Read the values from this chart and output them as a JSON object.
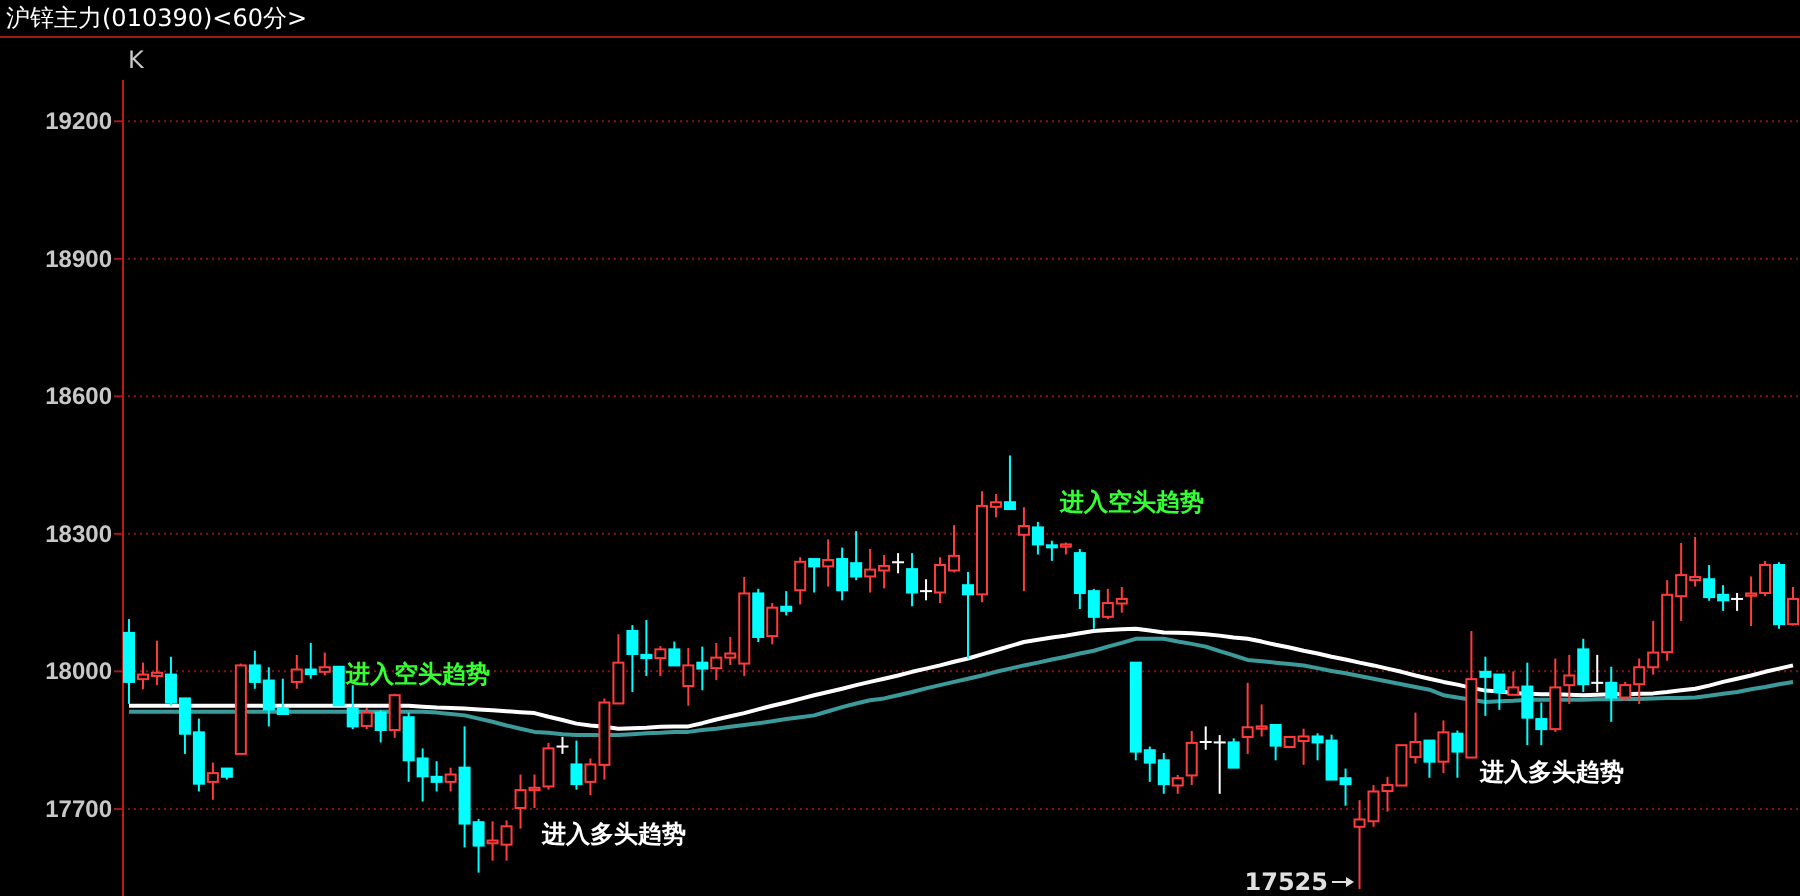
{
  "chart_data": {
    "type": "candlestick",
    "title": "沪锌主力(010390)<60分>",
    "subtitle": "K",
    "categories": [
      null,
      null,
      null,
      null,
      null,
      null,
      null,
      null,
      null,
      null,
      null,
      null,
      null,
      null,
      null,
      null,
      null,
      null,
      null,
      null,
      null,
      null,
      null,
      null,
      null,
      null,
      null,
      null,
      null,
      null,
      null,
      null,
      null,
      null,
      null,
      null,
      null,
      null,
      null,
      null,
      null,
      null,
      null,
      null,
      null,
      null,
      null,
      null,
      null,
      null,
      null,
      null,
      null,
      null,
      null,
      null,
      null,
      null,
      null,
      null,
      null,
      null,
      null,
      null,
      null,
      null,
      null,
      null,
      null,
      null,
      null,
      null,
      null,
      null,
      null,
      null,
      null,
      null,
      null,
      null,
      null,
      null,
      null,
      null,
      null,
      null,
      null,
      null,
      null,
      null,
      null,
      null,
      null,
      null,
      null,
      null,
      null,
      null,
      null,
      null,
      null,
      null,
      null,
      null,
      null,
      null,
      null,
      null,
      null,
      null,
      null,
      null,
      null,
      null,
      null,
      null,
      null,
      null,
      null,
      null
    ],
    "ohlc": [
      [
        18084,
        18114,
        17929,
        17977
      ],
      [
        17983,
        18019,
        17961,
        17993
      ],
      [
        17990,
        18067,
        17970,
        17997
      ],
      [
        17993,
        18032,
        17926,
        17932
      ],
      [
        17941,
        17941,
        17820,
        17864
      ],
      [
        17867,
        17897,
        17738,
        17755
      ],
      [
        17759,
        17801,
        17720,
        17778
      ],
      [
        17788,
        17788,
        17764,
        17770
      ],
      [
        17820,
        18017,
        17820,
        18013
      ],
      [
        18013,
        18045,
        17962,
        17977
      ],
      [
        17980,
        18009,
        17880,
        17917
      ],
      [
        17919,
        17984,
        17907,
        17907
      ],
      [
        17977,
        18036,
        17962,
        18004
      ],
      [
        18004,
        18062,
        17984,
        17994
      ],
      [
        17999,
        18041,
        17991,
        18009
      ],
      [
        18010,
        18010,
        17926,
        17926
      ],
      [
        17919,
        17970,
        17874,
        17880
      ],
      [
        17881,
        17920,
        17874,
        17910
      ],
      [
        17910,
        17915,
        17845,
        17872
      ],
      [
        17872,
        17951,
        17855,
        17948
      ],
      [
        17900,
        17910,
        17759,
        17806
      ],
      [
        17810,
        17832,
        17716,
        17771
      ],
      [
        17770,
        17804,
        17738,
        17759
      ],
      [
        17759,
        17790,
        17738,
        17775
      ],
      [
        17790,
        17880,
        17616,
        17668
      ],
      [
        17671,
        17678,
        17561,
        17620
      ],
      [
        17625,
        17673,
        17587,
        17631
      ],
      [
        17622,
        17675,
        17587,
        17662
      ],
      [
        17702,
        17775,
        17657,
        17741
      ],
      [
        17741,
        17775,
        17702,
        17746
      ],
      [
        17749,
        17844,
        17742,
        17832
      ],
      [
        17836,
        17857,
        17820,
        17836
      ],
      [
        17797,
        17849,
        17742,
        17754
      ],
      [
        17759,
        17810,
        17730,
        17797
      ],
      [
        17796,
        17941,
        17764,
        17932
      ],
      [
        17930,
        18081,
        17930,
        18019
      ],
      [
        18088,
        18101,
        17955,
        18038
      ],
      [
        18036,
        18112,
        17990,
        18029
      ],
      [
        18029,
        18055,
        17990,
        18048
      ],
      [
        18048,
        18065,
        18013,
        18013
      ],
      [
        17968,
        18051,
        17925,
        18013
      ],
      [
        18019,
        18054,
        17959,
        18006
      ],
      [
        18007,
        18062,
        17981,
        18030
      ],
      [
        18030,
        18075,
        18014,
        18039
      ],
      [
        18017,
        18206,
        17990,
        18170
      ],
      [
        18170,
        18180,
        18064,
        18075
      ],
      [
        18077,
        18149,
        18059,
        18139
      ],
      [
        18141,
        18175,
        18122,
        18132
      ],
      [
        18177,
        18249,
        18146,
        18239
      ],
      [
        18245,
        18245,
        18172,
        18229
      ],
      [
        18229,
        18288,
        18185,
        18243
      ],
      [
        18245,
        18270,
        18155,
        18177
      ],
      [
        18236,
        18306,
        18199,
        18207
      ],
      [
        18207,
        18267,
        18172,
        18222
      ],
      [
        18220,
        18254,
        18181,
        18230
      ],
      [
        18238,
        18258,
        18214,
        18238
      ],
      [
        18223,
        18258,
        18142,
        18172
      ],
      [
        18175,
        18201,
        18155,
        18175
      ],
      [
        18172,
        18249,
        18149,
        18232
      ],
      [
        18220,
        18319,
        18216,
        18252
      ],
      [
        18188,
        18217,
        18028,
        18168
      ],
      [
        18168,
        18393,
        18151,
        18361
      ],
      [
        18359,
        18387,
        18336,
        18369
      ],
      [
        18369,
        18471,
        18354,
        18354
      ],
      [
        18298,
        18358,
        18175,
        18317
      ],
      [
        18314,
        18326,
        18255,
        18277
      ],
      [
        18275,
        18285,
        18241,
        18271
      ],
      [
        18272,
        18281,
        18255,
        18277
      ],
      [
        18258,
        18267,
        18136,
        18171
      ],
      [
        18175,
        18180,
        18093,
        18119
      ],
      [
        18119,
        18180,
        18114,
        18149
      ],
      [
        18148,
        18184,
        18128,
        18158
      ],
      [
        18019,
        18019,
        17806,
        17825
      ],
      [
        17828,
        17836,
        17759,
        17801
      ],
      [
        17806,
        17822,
        17733,
        17754
      ],
      [
        17751,
        17774,
        17733,
        17767
      ],
      [
        17773,
        17870,
        17752,
        17844
      ],
      [
        17846,
        17880,
        17829,
        17846
      ],
      [
        17845,
        17861,
        17733,
        17845
      ],
      [
        17845,
        17854,
        17790,
        17790
      ],
      [
        17857,
        17975,
        17820,
        17878
      ],
      [
        17875,
        17928,
        17858,
        17880
      ],
      [
        17883,
        17883,
        17806,
        17838
      ],
      [
        17835,
        17857,
        17835,
        17857
      ],
      [
        17848,
        17875,
        17796,
        17858
      ],
      [
        17858,
        17865,
        17806,
        17845
      ],
      [
        17849,
        17862,
        17764,
        17764
      ],
      [
        17767,
        17788,
        17707,
        17754
      ],
      [
        17661,
        17719,
        17525,
        17677
      ],
      [
        17673,
        17752,
        17661,
        17738
      ],
      [
        17739,
        17770,
        17694,
        17752
      ],
      [
        17751,
        17839,
        17751,
        17839
      ],
      [
        17813,
        17910,
        17799,
        17846
      ],
      [
        17849,
        17849,
        17768,
        17803
      ],
      [
        17803,
        17893,
        17778,
        17867
      ],
      [
        17864,
        17871,
        17768,
        17825
      ],
      [
        17812,
        18088,
        17812,
        17983
      ],
      [
        17999,
        18032,
        17903,
        17988
      ],
      [
        17993,
        17993,
        17916,
        17955
      ],
      [
        17949,
        18000,
        17948,
        17965
      ],
      [
        17967,
        18019,
        17839,
        17899
      ],
      [
        17896,
        17932,
        17839,
        17874
      ],
      [
        17874,
        18028,
        17868,
        17965
      ],
      [
        17970,
        18036,
        17929,
        17991
      ],
      [
        18048,
        18071,
        17955,
        17972
      ],
      [
        17975,
        18036,
        17955,
        17975
      ],
      [
        17975,
        18010,
        17890,
        17943
      ],
      [
        17943,
        17977,
        17936,
        17970
      ],
      [
        17972,
        18028,
        17929,
        18009
      ],
      [
        18009,
        18110,
        17993,
        18041
      ],
      [
        18042,
        18199,
        18023,
        18167
      ],
      [
        18164,
        18280,
        18110,
        18210
      ],
      [
        18199,
        18293,
        18185,
        18206
      ],
      [
        18201,
        18232,
        18154,
        18162
      ],
      [
        18167,
        18188,
        18132,
        18155
      ],
      [
        18158,
        18171,
        18132,
        18158
      ],
      [
        18165,
        18207,
        18099,
        18170
      ],
      [
        18171,
        18241,
        18164,
        18232
      ],
      [
        18232,
        18238,
        18093,
        18103
      ],
      [
        18103,
        18184,
        18100,
        18158
      ]
    ],
    "colors": [
      "#00ffff",
      "#ff3c3c",
      "#ff3c3c",
      "#00ffff",
      "#00ffff",
      "#00ffff",
      "#ff3c3c",
      "#00ffff",
      "#ff3c3c",
      "#00ffff",
      "#00ffff",
      "#00ffff",
      "#ff3c3c",
      "#00ffff",
      "#ff3c3c",
      "#00ffff",
      "#00ffff",
      "#ff3c3c",
      "#00ffff",
      "#ff3c3c",
      "#00ffff",
      "#00ffff",
      "#00ffff",
      "#ff3c3c",
      "#00ffff",
      "#00ffff",
      "#ff3c3c",
      "#ff3c3c",
      "#ff3c3c",
      "#ff3c3c",
      "#ff3c3c",
      "#ffffff",
      "#00ffff",
      "#ff3c3c",
      "#ff3c3c",
      "#ff3c3c",
      "#00ffff",
      "#00ffff",
      "#ff3c3c",
      "#00ffff",
      "#ff3c3c",
      "#00ffff",
      "#ff3c3c",
      "#ff3c3c",
      "#ff3c3c",
      "#00ffff",
      "#ff3c3c",
      "#00ffff",
      "#ff3c3c",
      "#00ffff",
      "#ff3c3c",
      "#00ffff",
      "#00ffff",
      "#ff3c3c",
      "#ff3c3c",
      "#ffffff",
      "#00ffff",
      "#ffffff",
      "#ff3c3c",
      "#ff3c3c",
      "#00ffff",
      "#ff3c3c",
      "#ff3c3c",
      "#00ffff",
      "#ff3c3c",
      "#00ffff",
      "#00ffff",
      "#ff3c3c",
      "#00ffff",
      "#00ffff",
      "#ff3c3c",
      "#ff3c3c",
      "#00ffff",
      "#00ffff",
      "#00ffff",
      "#ff3c3c",
      "#ff3c3c",
      "#ffffff",
      "#ffffff",
      "#00ffff",
      "#ff3c3c",
      "#ff3c3c",
      "#00ffff",
      "#ff3c3c",
      "#ff3c3c",
      "#00ffff",
      "#00ffff",
      "#00ffff",
      "#ff3c3c",
      "#ff3c3c",
      "#ff3c3c",
      "#ff3c3c",
      "#ff3c3c",
      "#00ffff",
      "#ff3c3c",
      "#00ffff",
      "#ff3c3c",
      "#00ffff",
      "#00ffff",
      "#ff3c3c",
      "#00ffff",
      "#00ffff",
      "#ff3c3c",
      "#ff3c3c",
      "#00ffff",
      "#ffffff",
      "#00ffff",
      "#ff3c3c",
      "#ff3c3c",
      "#ff3c3c",
      "#ff3c3c",
      "#ff3c3c",
      "#ff3c3c",
      "#00ffff",
      "#00ffff",
      "#ffffff",
      "#ff3c3c",
      "#ff3c3c",
      "#00ffff",
      "#ff3c3c"
    ],
    "series": [
      {
        "type": "line",
        "color": "#3c9a9a",
        "values": [
          17912,
          17912,
          17912,
          17912,
          17912,
          17912,
          17912,
          17912,
          17912,
          17912,
          17912,
          17912,
          17912,
          17912,
          17912,
          17912,
          17912,
          17912,
          17912,
          17912,
          17912,
          17912,
          17910,
          17907,
          17904,
          17897,
          17890,
          17882,
          17875,
          17868,
          17866,
          17863,
          17861,
          17861,
          17861,
          17861,
          17863,
          17865,
          17866,
          17868,
          17868,
          17872,
          17875,
          17879,
          17883,
          17887,
          17891,
          17896,
          17900,
          17904,
          17913,
          17922,
          17930,
          17937,
          17941,
          17948,
          17955,
          17963,
          17970,
          17977,
          17984,
          17991,
          17999,
          18006,
          18013,
          18019,
          18026,
          18032,
          18039,
          18045,
          18054,
          18062,
          18071,
          18071,
          18071,
          18065,
          18060,
          18054,
          18044,
          18035,
          18025,
          18022,
          18019,
          18016,
          18013,
          18007,
          18001,
          17996,
          17990,
          17984,
          17978,
          17972,
          17966,
          17960,
          17948,
          17943,
          17938,
          17933,
          17935,
          17936,
          17938,
          17938,
          17938,
          17938,
          17938,
          17939,
          17939,
          17940,
          17940,
          17941,
          17942,
          17942,
          17943,
          17947,
          17951,
          17955,
          17961,
          17966,
          17972,
          17977
        ]
      },
      {
        "type": "line",
        "color": "#ffffff",
        "values": [
          17925,
          17925,
          17925,
          17925,
          17925,
          17925,
          17925,
          17925,
          17925,
          17925,
          17925,
          17925,
          17925,
          17925,
          17925,
          17925,
          17925,
          17925,
          17925,
          17925,
          17925,
          17923,
          17921,
          17920,
          17919,
          17917,
          17915,
          17913,
          17911,
          17909,
          17901,
          17894,
          17886,
          17882,
          17879,
          17875,
          17876,
          17877,
          17879,
          17880,
          17880,
          17887,
          17895,
          17902,
          17909,
          17917,
          17925,
          17932,
          17940,
          17948,
          17955,
          17962,
          17970,
          17977,
          17984,
          17991,
          17999,
          18006,
          18013,
          18021,
          18028,
          18037,
          18046,
          18055,
          18064,
          18069,
          18074,
          18078,
          18083,
          18088,
          18090,
          18092,
          18093,
          18089,
          18085,
          18084,
          18083,
          18081,
          18078,
          18074,
          18071,
          18065,
          18058,
          18052,
          18045,
          18039,
          18032,
          18026,
          18019,
          18013,
          18006,
          17999,
          17991,
          17984,
          17977,
          17971,
          17964,
          17958,
          17956,
          17953,
          17951,
          17950,
          17950,
          17949,
          17948,
          17949,
          17950,
          17950,
          17951,
          17952,
          17955,
          17959,
          17962,
          17969,
          17977,
          17984,
          17991,
          17999,
          18006,
          18013
        ]
      }
    ],
    "ylim": [
      17510,
      19290
    ],
    "yticks": [
      17700,
      18000,
      18300,
      18600,
      18900,
      19200
    ],
    "grid": "y",
    "tick_labels": "y",
    "annotations": [
      "进入空头趋势",
      "进入多头趋势",
      "进入空头趋势",
      "17525",
      "进入多头趋势"
    ]
  }
}
